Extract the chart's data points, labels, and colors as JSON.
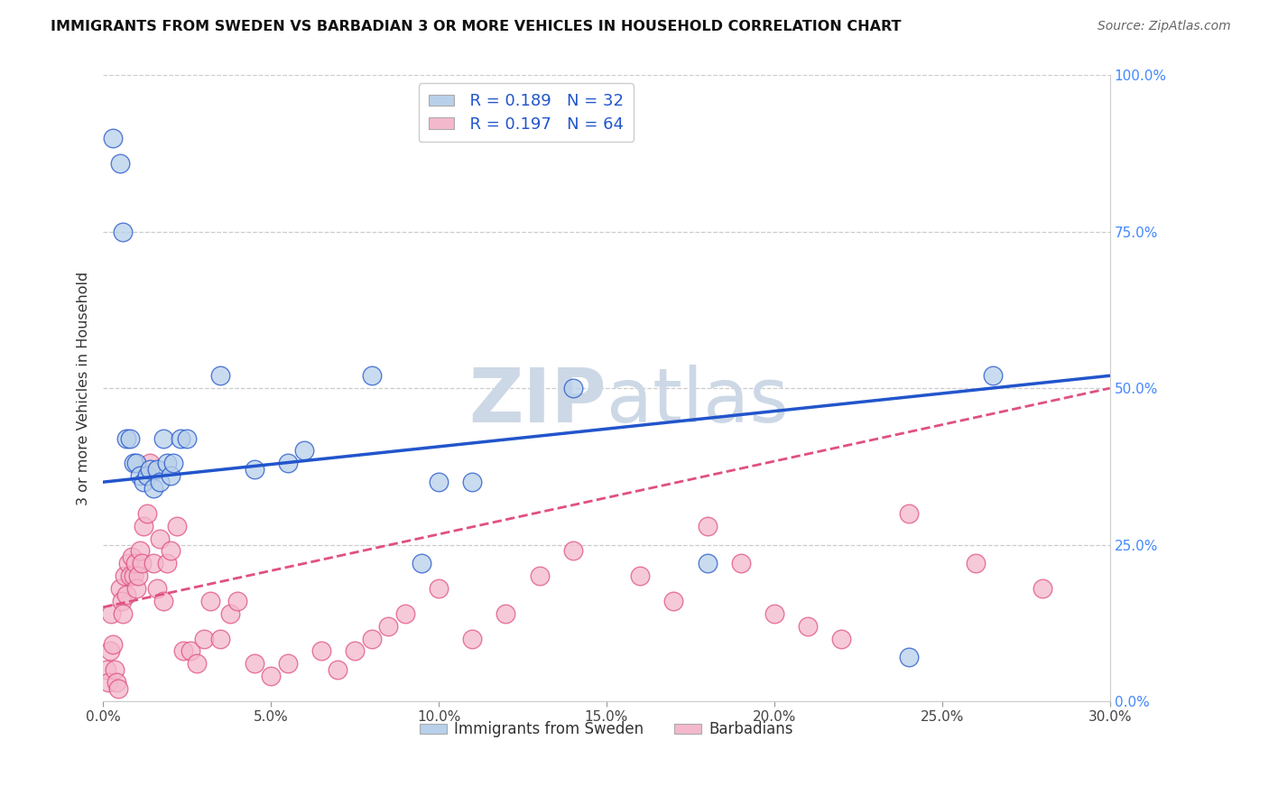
{
  "title": "IMMIGRANTS FROM SWEDEN VS BARBADIAN 3 OR MORE VEHICLES IN HOUSEHOLD CORRELATION CHART",
  "source": "Source: ZipAtlas.com",
  "ylabel_label": "3 or more Vehicles in Household",
  "R_sweden": 0.189,
  "N_sweden": 32,
  "R_barbadian": 0.197,
  "N_barbadian": 64,
  "color_sweden": "#b8d0ea",
  "color_barbadian": "#f4b8cc",
  "line_color_sweden": "#2255cc",
  "line_color_barbadian": "#e05080",
  "text_color_legend": "#2255cc",
  "background_color": "#ffffff",
  "watermark_color": "#cdd8e6",
  "xlim": [
    0,
    30
  ],
  "ylim": [
    0,
    100
  ],
  "xticks": [
    0,
    5,
    10,
    15,
    20,
    25,
    30
  ],
  "yticks_right": [
    0,
    25,
    50,
    75,
    100
  ],
  "sweden_x": [
    0.3,
    0.5,
    0.6,
    0.7,
    0.8,
    0.9,
    1.0,
    1.1,
    1.2,
    1.3,
    1.4,
    1.5,
    1.6,
    1.7,
    1.8,
    1.9,
    2.0,
    2.1,
    2.3,
    2.5,
    3.5,
    4.5,
    5.5,
    6.0,
    8.0,
    9.5,
    10.0,
    11.0,
    14.0,
    18.0,
    24.0,
    26.5
  ],
  "sweden_y": [
    90.0,
    86.0,
    75.0,
    42.0,
    42.0,
    38.0,
    38.0,
    36.0,
    35.0,
    36.0,
    37.0,
    34.0,
    37.0,
    35.0,
    42.0,
    38.0,
    36.0,
    38.0,
    42.0,
    42.0,
    52.0,
    37.0,
    38.0,
    40.0,
    52.0,
    22.0,
    35.0,
    35.0,
    50.0,
    22.0,
    7.0,
    52.0
  ],
  "barbadian_x": [
    0.1,
    0.15,
    0.2,
    0.25,
    0.3,
    0.35,
    0.4,
    0.45,
    0.5,
    0.55,
    0.6,
    0.65,
    0.7,
    0.75,
    0.8,
    0.85,
    0.9,
    0.95,
    1.0,
    1.05,
    1.1,
    1.15,
    1.2,
    1.3,
    1.4,
    1.5,
    1.6,
    1.7,
    1.8,
    1.9,
    2.0,
    2.2,
    2.4,
    2.6,
    2.8,
    3.0,
    3.2,
    3.5,
    3.8,
    4.0,
    4.5,
    5.0,
    5.5,
    6.5,
    7.0,
    7.5,
    8.0,
    8.5,
    9.0,
    10.0,
    11.0,
    12.0,
    13.0,
    14.0,
    16.0,
    17.0,
    18.0,
    19.0,
    20.0,
    21.0,
    22.0,
    24.0,
    26.0,
    28.0
  ],
  "barbadian_y": [
    5.0,
    3.0,
    8.0,
    14.0,
    9.0,
    5.0,
    3.0,
    2.0,
    18.0,
    16.0,
    14.0,
    20.0,
    17.0,
    22.0,
    20.0,
    23.0,
    20.0,
    22.0,
    18.0,
    20.0,
    24.0,
    22.0,
    28.0,
    30.0,
    38.0,
    22.0,
    18.0,
    26.0,
    16.0,
    22.0,
    24.0,
    28.0,
    8.0,
    8.0,
    6.0,
    10.0,
    16.0,
    10.0,
    14.0,
    16.0,
    6.0,
    4.0,
    6.0,
    8.0,
    5.0,
    8.0,
    10.0,
    12.0,
    14.0,
    18.0,
    10.0,
    14.0,
    20.0,
    24.0,
    20.0,
    16.0,
    28.0,
    22.0,
    14.0,
    12.0,
    10.0,
    30.0,
    22.0,
    18.0
  ]
}
